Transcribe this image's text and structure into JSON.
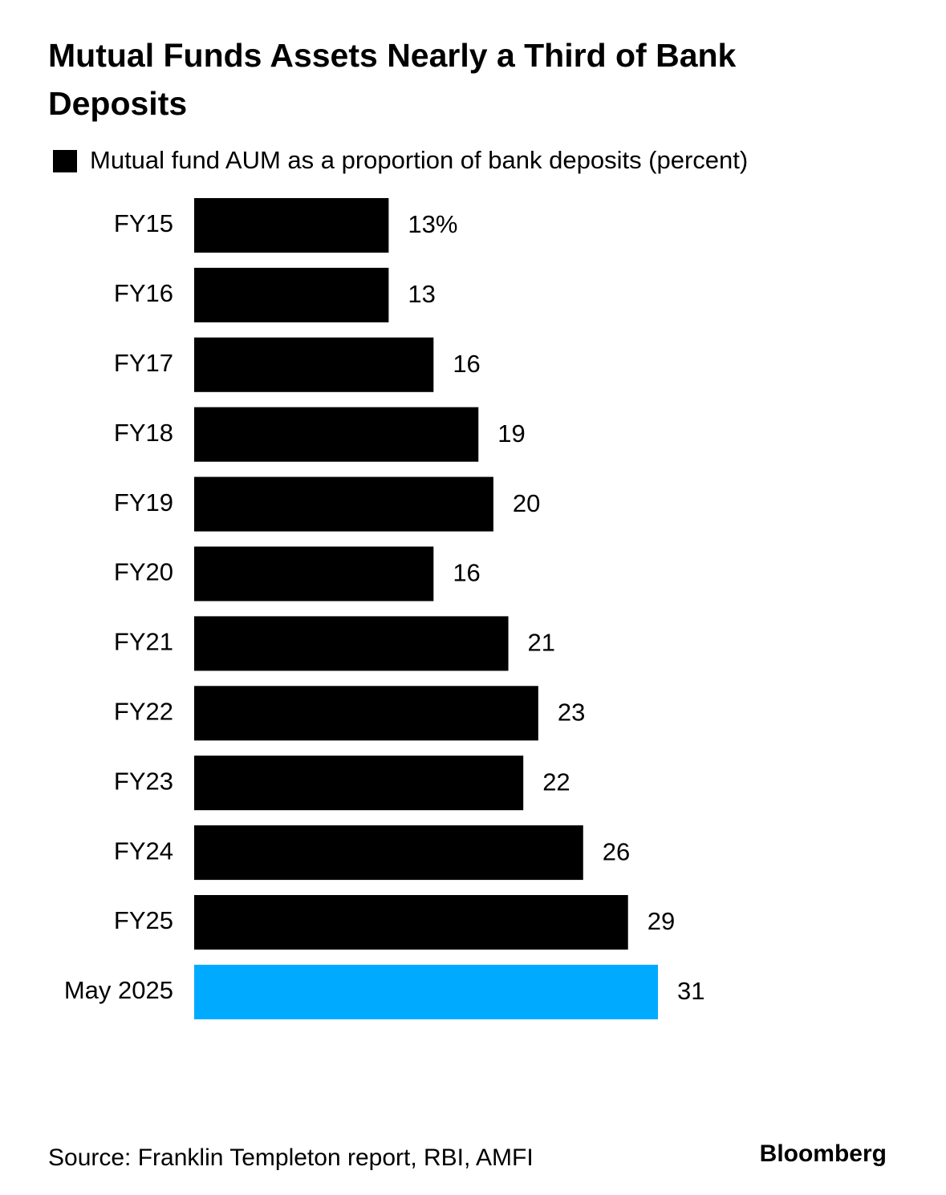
{
  "chart_data": {
    "type": "hbar",
    "title": "Mutual Funds Assets Nearly a Third of Bank Deposits",
    "categories": [
      "FY15",
      "FY16",
      "FY17",
      "FY18",
      "FY19",
      "FY20",
      "FY21",
      "FY22",
      "FY23",
      "FY24",
      "FY25",
      "May 2025"
    ],
    "series": [
      {
        "name": "Mutual fund AUM as a proportion of bank deposits (percent)",
        "color": "#000000",
        "colors": [
          "#000000",
          "#000000",
          "#000000",
          "#000000",
          "#000000",
          "#000000",
          "#000000",
          "#000000",
          "#000000",
          "#000000",
          "#000000",
          "#00aaff"
        ],
        "values": [
          13,
          13,
          16,
          19,
          20,
          16,
          21,
          23,
          22,
          26,
          29,
          31
        ],
        "value_labels": [
          "13%",
          "13",
          "16",
          "19",
          "20",
          "16",
          "21",
          "23",
          "22",
          "26",
          "29",
          "31"
        ]
      }
    ],
    "source": "Source: Franklin Templeton report, RBI, AMFI",
    "brand": "Bloomberg"
  }
}
